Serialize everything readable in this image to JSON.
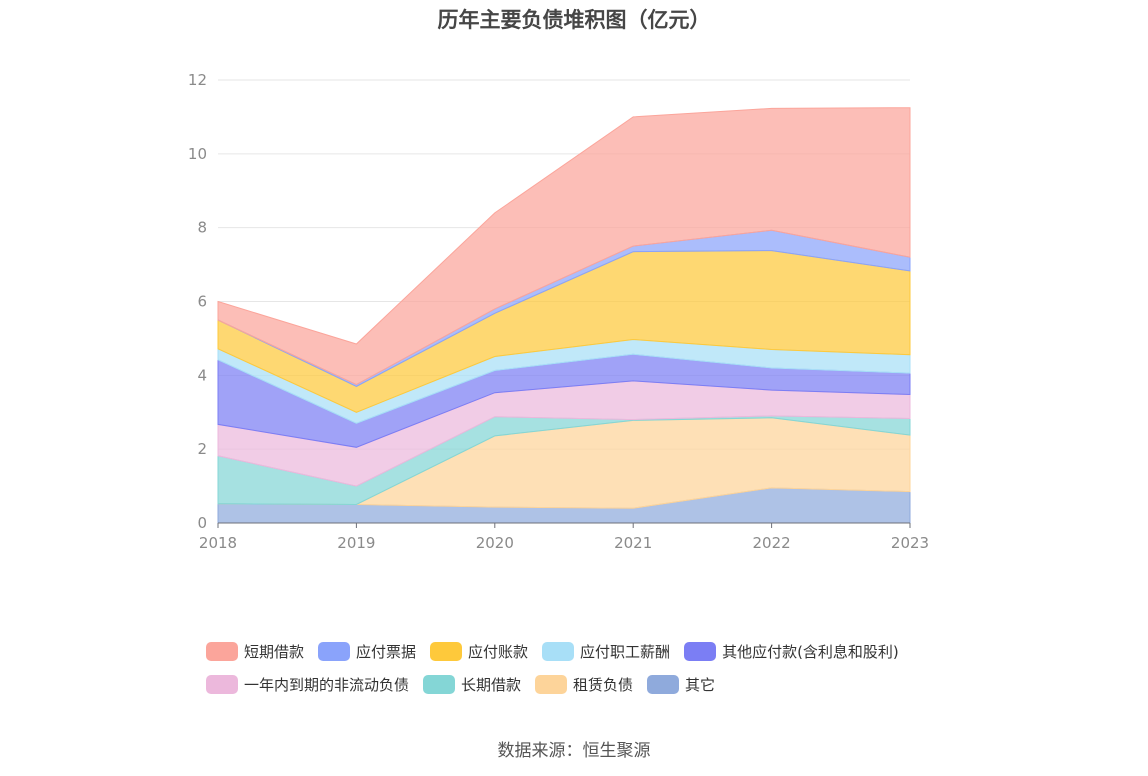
{
  "chart_data": {
    "type": "area",
    "stacked": true,
    "title": "历年主要负债堆积图（亿元）",
    "x": [
      "2018",
      "2019",
      "2020",
      "2021",
      "2022",
      "2023"
    ],
    "ylim": [
      0,
      12
    ],
    "yticks": [
      "0",
      "2",
      "4",
      "6",
      "8",
      "10",
      "12"
    ],
    "grid": true,
    "legend_position": "bottom",
    "series": [
      {
        "name": "其它",
        "color": "#8faadc",
        "values": [
          0.52,
          0.5,
          0.43,
          0.4,
          0.95,
          0.85
        ]
      },
      {
        "name": "租赁负债",
        "color": "#fdd49a",
        "values": [
          0.0,
          0.0,
          1.93,
          2.38,
          1.9,
          1.53
        ]
      },
      {
        "name": "长期借款",
        "color": "#84d6d6",
        "values": [
          1.3,
          0.5,
          0.52,
          0.02,
          0.05,
          0.45
        ]
      },
      {
        "name": "一年内到期的非流动负债",
        "color": "#ecb8dc",
        "values": [
          0.85,
          1.05,
          0.65,
          1.05,
          0.7,
          0.65
        ]
      },
      {
        "name": "其他应付款(含利息和股利)",
        "color": "#7b7ef4",
        "values": [
          1.75,
          0.65,
          0.6,
          0.72,
          0.6,
          0.58
        ]
      },
      {
        "name": "应付职工薪酬",
        "color": "#a8dff7",
        "values": [
          0.3,
          0.3,
          0.38,
          0.4,
          0.5,
          0.5
        ]
      },
      {
        "name": "应付账款",
        "color": "#fec93b",
        "values": [
          0.78,
          0.7,
          1.17,
          2.38,
          2.68,
          2.27
        ]
      },
      {
        "name": "应付票据",
        "color": "#8aa3fb",
        "values": [
          0.0,
          0.05,
          0.12,
          0.15,
          0.55,
          0.37
        ]
      },
      {
        "name": "短期借款",
        "color": "#fba59b",
        "values": [
          0.5,
          1.1,
          2.6,
          3.5,
          3.3,
          4.05
        ]
      }
    ]
  },
  "legend": {
    "row1": [
      {
        "label": "短期借款",
        "color": "#fba59b"
      },
      {
        "label": "应付票据",
        "color": "#8aa3fb"
      },
      {
        "label": "应付账款",
        "color": "#fec93b"
      },
      {
        "label": "应付职工薪酬",
        "color": "#a8dff7"
      },
      {
        "label": "其他应付款(含利息和股利)",
        "color": "#7b7ef4"
      }
    ],
    "row2": [
      {
        "label": "一年内到期的非流动负债",
        "color": "#ecb8dc"
      },
      {
        "label": "长期借款",
        "color": "#84d6d6"
      },
      {
        "label": "租赁负债",
        "color": "#fdd49a"
      },
      {
        "label": "其它",
        "color": "#8faadc"
      }
    ]
  },
  "source": "数据来源：恒生聚源"
}
